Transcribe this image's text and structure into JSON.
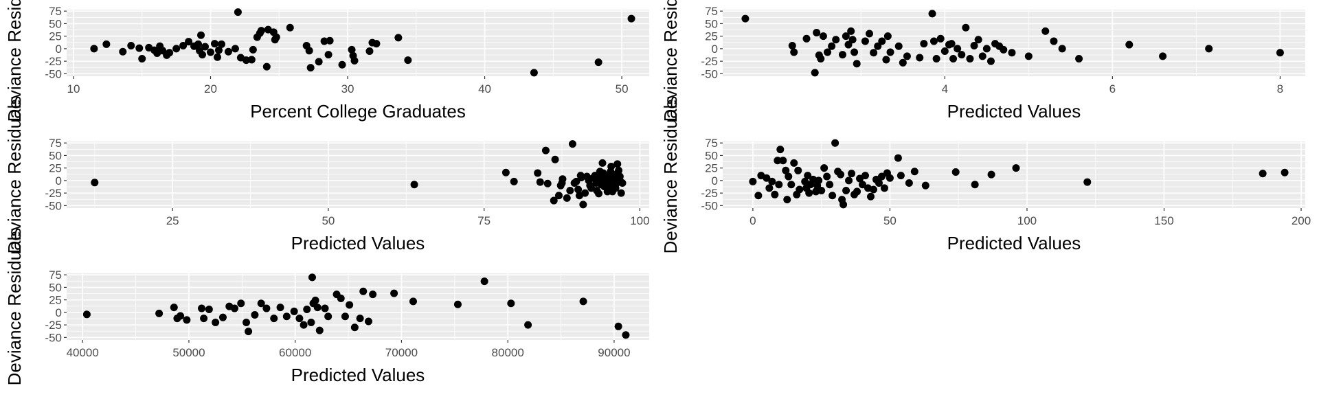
{
  "chart_data": [
    {
      "type": "scatter",
      "xlabel": "Percent College Graduates",
      "ylabel": "Deviance Residuals",
      "xlim": [
        9.5,
        52
      ],
      "ylim": [
        -55,
        78
      ],
      "xticks": [
        10,
        20,
        30,
        40,
        50
      ],
      "yticks": [
        -50,
        -25,
        0,
        25,
        50,
        75
      ],
      "points": [
        [
          11.5,
          0
        ],
        [
          12.4,
          9
        ],
        [
          13.6,
          -6
        ],
        [
          14.2,
          6
        ],
        [
          14.8,
          1
        ],
        [
          15.0,
          -20
        ],
        [
          15.5,
          2
        ],
        [
          15.9,
          -3
        ],
        [
          16.1,
          -9
        ],
        [
          16.3,
          5
        ],
        [
          16.5,
          -4
        ],
        [
          16.8,
          -13
        ],
        [
          17.0,
          -8
        ],
        [
          17.5,
          0
        ],
        [
          18.0,
          6
        ],
        [
          18.4,
          14
        ],
        [
          18.8,
          5
        ],
        [
          19.1,
          9
        ],
        [
          19.2,
          -4
        ],
        [
          19.3,
          27
        ],
        [
          19.4,
          -12
        ],
        [
          19.6,
          4
        ],
        [
          20.0,
          -7
        ],
        [
          20.3,
          10
        ],
        [
          20.5,
          -17
        ],
        [
          20.6,
          -3
        ],
        [
          20.8,
          9
        ],
        [
          21.3,
          -6
        ],
        [
          21.8,
          0
        ],
        [
          22.0,
          73
        ],
        [
          22.2,
          -18
        ],
        [
          22.6,
          -23
        ],
        [
          23.0,
          -22
        ],
        [
          23.1,
          -2
        ],
        [
          23.4,
          23
        ],
        [
          23.6,
          31
        ],
        [
          23.7,
          36
        ],
        [
          24.1,
          -36
        ],
        [
          24.2,
          38
        ],
        [
          24.6,
          33
        ],
        [
          24.7,
          18
        ],
        [
          24.8,
          23
        ],
        [
          25.8,
          42
        ],
        [
          27.0,
          6
        ],
        [
          27.2,
          -4
        ],
        [
          27.3,
          -38
        ],
        [
          27.9,
          -26
        ],
        [
          28.3,
          15
        ],
        [
          28.6,
          -12
        ],
        [
          28.7,
          16
        ],
        [
          29.6,
          -32
        ],
        [
          30.3,
          -2
        ],
        [
          30.4,
          -14
        ],
        [
          30.5,
          -24
        ],
        [
          31.6,
          -5
        ],
        [
          31.8,
          12
        ],
        [
          32.1,
          10
        ],
        [
          33.7,
          22
        ],
        [
          34.4,
          -23
        ],
        [
          43.6,
          -48
        ],
        [
          48.3,
          -27
        ],
        [
          50.7,
          60
        ]
      ]
    },
    {
      "type": "scatter",
      "xlabel": "Predicted Values",
      "ylabel": "Deviance Residuals",
      "xlim": [
        1.35,
        8.3
      ],
      "ylim": [
        -55,
        78
      ],
      "xticks": [
        4,
        6,
        8
      ],
      "yticks": [
        -50,
        -25,
        0,
        25,
        50,
        75
      ],
      "points": [
        [
          1.62,
          60
        ],
        [
          2.18,
          6
        ],
        [
          2.2,
          -7
        ],
        [
          2.35,
          20
        ],
        [
          2.45,
          -48
        ],
        [
          2.47,
          32
        ],
        [
          2.5,
          -13
        ],
        [
          2.52,
          -20
        ],
        [
          2.55,
          25
        ],
        [
          2.6,
          -7
        ],
        [
          2.65,
          5
        ],
        [
          2.7,
          18
        ],
        [
          2.78,
          -12
        ],
        [
          2.82,
          25
        ],
        [
          2.85,
          8
        ],
        [
          2.88,
          35
        ],
        [
          2.9,
          18
        ],
        [
          2.92,
          -7
        ],
        [
          2.95,
          -30
        ],
        [
          3.05,
          15
        ],
        [
          3.1,
          30
        ],
        [
          3.15,
          -8
        ],
        [
          3.2,
          5
        ],
        [
          3.25,
          15
        ],
        [
          3.3,
          -22
        ],
        [
          3.32,
          25
        ],
        [
          3.35,
          -7
        ],
        [
          3.45,
          5
        ],
        [
          3.5,
          -28
        ],
        [
          3.55,
          -15
        ],
        [
          3.7,
          -18
        ],
        [
          3.75,
          10
        ],
        [
          3.85,
          70
        ],
        [
          3.87,
          15
        ],
        [
          3.9,
          -20
        ],
        [
          3.95,
          20
        ],
        [
          4.0,
          -5
        ],
        [
          4.05,
          8
        ],
        [
          4.08,
          10
        ],
        [
          4.1,
          -20
        ],
        [
          4.15,
          0
        ],
        [
          4.2,
          -12
        ],
        [
          4.25,
          42
        ],
        [
          4.3,
          -20
        ],
        [
          4.35,
          6
        ],
        [
          4.4,
          18
        ],
        [
          4.45,
          -15
        ],
        [
          4.5,
          0
        ],
        [
          4.55,
          -25
        ],
        [
          4.6,
          10
        ],
        [
          4.65,
          5
        ],
        [
          4.7,
          -2
        ],
        [
          4.8,
          -8
        ],
        [
          5.0,
          -15
        ],
        [
          5.2,
          35
        ],
        [
          5.3,
          15
        ],
        [
          5.4,
          0
        ],
        [
          5.6,
          -20
        ],
        [
          6.2,
          8
        ],
        [
          6.6,
          -15
        ],
        [
          7.15,
          0
        ],
        [
          8.0,
          -8
        ]
      ]
    },
    {
      "type": "scatter",
      "xlabel": "Predicted Values",
      "ylabel": "Deviance Residuals",
      "xlim": [
        8,
        101.5
      ],
      "ylim": [
        -55,
        78
      ],
      "xticks": [
        25,
        50,
        75,
        100
      ],
      "yticks": [
        -50,
        -25,
        0,
        25,
        50,
        75
      ],
      "points": [
        [
          12.5,
          -4
        ],
        [
          63.8,
          -8
        ],
        [
          78.5,
          16
        ],
        [
          79.8,
          -2
        ],
        [
          83.6,
          15
        ],
        [
          84.0,
          -3
        ],
        [
          84.9,
          60
        ],
        [
          85.2,
          -6
        ],
        [
          86.2,
          -40
        ],
        [
          86.4,
          42
        ],
        [
          87.0,
          -30
        ],
        [
          87.3,
          -10
        ],
        [
          87.5,
          -5
        ],
        [
          87.6,
          3
        ],
        [
          88.3,
          -35
        ],
        [
          88.8,
          -20
        ],
        [
          89.2,
          73
        ],
        [
          89.5,
          -5
        ],
        [
          89.8,
          -2
        ],
        [
          90.1,
          -18
        ],
        [
          90.3,
          -30
        ],
        [
          90.5,
          10
        ],
        [
          90.6,
          6
        ],
        [
          90.9,
          -48
        ],
        [
          91.2,
          -25
        ],
        [
          91.5,
          8
        ],
        [
          91.8,
          0
        ],
        [
          92.0,
          -10
        ],
        [
          92.2,
          -15
        ],
        [
          92.5,
          5
        ],
        [
          92.8,
          10
        ],
        [
          93.0,
          -5
        ],
        [
          93.1,
          -20
        ],
        [
          93.2,
          -2
        ],
        [
          93.4,
          -26
        ],
        [
          93.5,
          8
        ],
        [
          93.6,
          18
        ],
        [
          93.8,
          -8
        ],
        [
          93.9,
          -3
        ],
        [
          94.0,
          35
        ],
        [
          94.1,
          15
        ],
        [
          94.3,
          -12
        ],
        [
          94.5,
          -5
        ],
        [
          94.6,
          4
        ],
        [
          94.8,
          -22
        ],
        [
          94.9,
          10
        ],
        [
          95.0,
          -10
        ],
        [
          95.1,
          2
        ],
        [
          95.3,
          18
        ],
        [
          95.4,
          28
        ],
        [
          95.5,
          -3
        ],
        [
          95.6,
          -22
        ],
        [
          95.8,
          5
        ],
        [
          96.0,
          12
        ],
        [
          96.1,
          -15
        ],
        [
          96.3,
          -5
        ],
        [
          96.4,
          33
        ],
        [
          96.6,
          20
        ],
        [
          96.8,
          8
        ],
        [
          96.9,
          -2
        ],
        [
          97.0,
          -25
        ],
        [
          97.2,
          -5
        ]
      ]
    },
    {
      "type": "scatter",
      "xlabel": "Predicted Values",
      "ylabel": "Deviance Residuals",
      "xlim": [
        -11,
        201.5
      ],
      "ylim": [
        -55,
        78
      ],
      "xticks": [
        0,
        50,
        100,
        150,
        200
      ],
      "yticks": [
        -50,
        -25,
        0,
        25,
        50,
        75
      ],
      "points": [
        [
          0,
          -2
        ],
        [
          2,
          -30
        ],
        [
          3,
          10
        ],
        [
          5,
          5
        ],
        [
          6,
          -15
        ],
        [
          7,
          -2
        ],
        [
          8,
          -28
        ],
        [
          9,
          40
        ],
        [
          9.5,
          -8
        ],
        [
          10,
          62
        ],
        [
          11,
          40
        ],
        [
          12,
          20
        ],
        [
          12.5,
          -38
        ],
        [
          13,
          8
        ],
        [
          14,
          -8
        ],
        [
          15,
          35
        ],
        [
          16,
          -28
        ],
        [
          16.5,
          20
        ],
        [
          17,
          -18
        ],
        [
          19,
          -2
        ],
        [
          19.5,
          -15
        ],
        [
          20,
          10
        ],
        [
          20.5,
          -25
        ],
        [
          21,
          -8
        ],
        [
          22,
          2
        ],
        [
          23,
          -22
        ],
        [
          23.5,
          -10
        ],
        [
          24,
          0
        ],
        [
          25,
          -20
        ],
        [
          26,
          25
        ],
        [
          27,
          8
        ],
        [
          28,
          -8
        ],
        [
          29,
          -30
        ],
        [
          30,
          75
        ],
        [
          31,
          18
        ],
        [
          32,
          12
        ],
        [
          32.5,
          -38
        ],
        [
          33,
          -48
        ],
        [
          34,
          -20
        ],
        [
          35,
          0
        ],
        [
          36,
          14
        ],
        [
          37,
          -28
        ],
        [
          38,
          -22
        ],
        [
          39,
          4
        ],
        [
          40,
          -8
        ],
        [
          41,
          10
        ],
        [
          42,
          -15
        ],
        [
          43,
          -32
        ],
        [
          44,
          -18
        ],
        [
          45,
          2
        ],
        [
          46,
          -5
        ],
        [
          47,
          8
        ],
        [
          48,
          -15
        ],
        [
          49,
          15
        ],
        [
          50,
          5
        ],
        [
          53,
          45
        ],
        [
          54,
          10
        ],
        [
          57,
          -5
        ],
        [
          59,
          18
        ],
        [
          63,
          -10
        ],
        [
          74,
          17
        ],
        [
          81,
          -8
        ],
        [
          87,
          12
        ],
        [
          96,
          25
        ],
        [
          122,
          -3
        ],
        [
          186,
          14
        ],
        [
          194,
          16
        ]
      ]
    },
    {
      "type": "scatter",
      "xlabel": "Predicted Values",
      "ylabel": "Deviance Residuals",
      "xlim": [
        38500,
        93300
      ],
      "ylim": [
        -55,
        78
      ],
      "xticks": [
        40000,
        50000,
        60000,
        70000,
        80000,
        90000
      ],
      "yticks": [
        -50,
        -25,
        0,
        25,
        50,
        75
      ],
      "points": [
        [
          40400,
          -4
        ],
        [
          47200,
          -2
        ],
        [
          48600,
          10
        ],
        [
          48900,
          -12
        ],
        [
          49200,
          -7
        ],
        [
          49800,
          -15
        ],
        [
          51200,
          8
        ],
        [
          51400,
          -12
        ],
        [
          51900,
          6
        ],
        [
          52500,
          -20
        ],
        [
          53200,
          -10
        ],
        [
          53800,
          12
        ],
        [
          54300,
          8
        ],
        [
          54900,
          18
        ],
        [
          55400,
          -20
        ],
        [
          55600,
          -38
        ],
        [
          56200,
          -5
        ],
        [
          56800,
          18
        ],
        [
          57300,
          8
        ],
        [
          58000,
          -12
        ],
        [
          58600,
          10
        ],
        [
          59200,
          -8
        ],
        [
          59900,
          2
        ],
        [
          60400,
          -12
        ],
        [
          60800,
          -25
        ],
        [
          61100,
          6
        ],
        [
          61500,
          -20
        ],
        [
          61600,
          70
        ],
        [
          61700,
          18
        ],
        [
          61900,
          24
        ],
        [
          62100,
          10
        ],
        [
          62300,
          -36
        ],
        [
          62800,
          8
        ],
        [
          63100,
          -8
        ],
        [
          63900,
          36
        ],
        [
          64300,
          28
        ],
        [
          64700,
          -8
        ],
        [
          65100,
          15
        ],
        [
          65600,
          -30
        ],
        [
          66100,
          -12
        ],
        [
          66400,
          42
        ],
        [
          66900,
          -18
        ],
        [
          67300,
          36
        ],
        [
          69300,
          38
        ],
        [
          71100,
          22
        ],
        [
          75300,
          16
        ],
        [
          77800,
          62
        ],
        [
          80300,
          18
        ],
        [
          81900,
          -25
        ],
        [
          87100,
          22
        ],
        [
          90400,
          -28
        ],
        [
          91100,
          -45
        ]
      ]
    }
  ]
}
